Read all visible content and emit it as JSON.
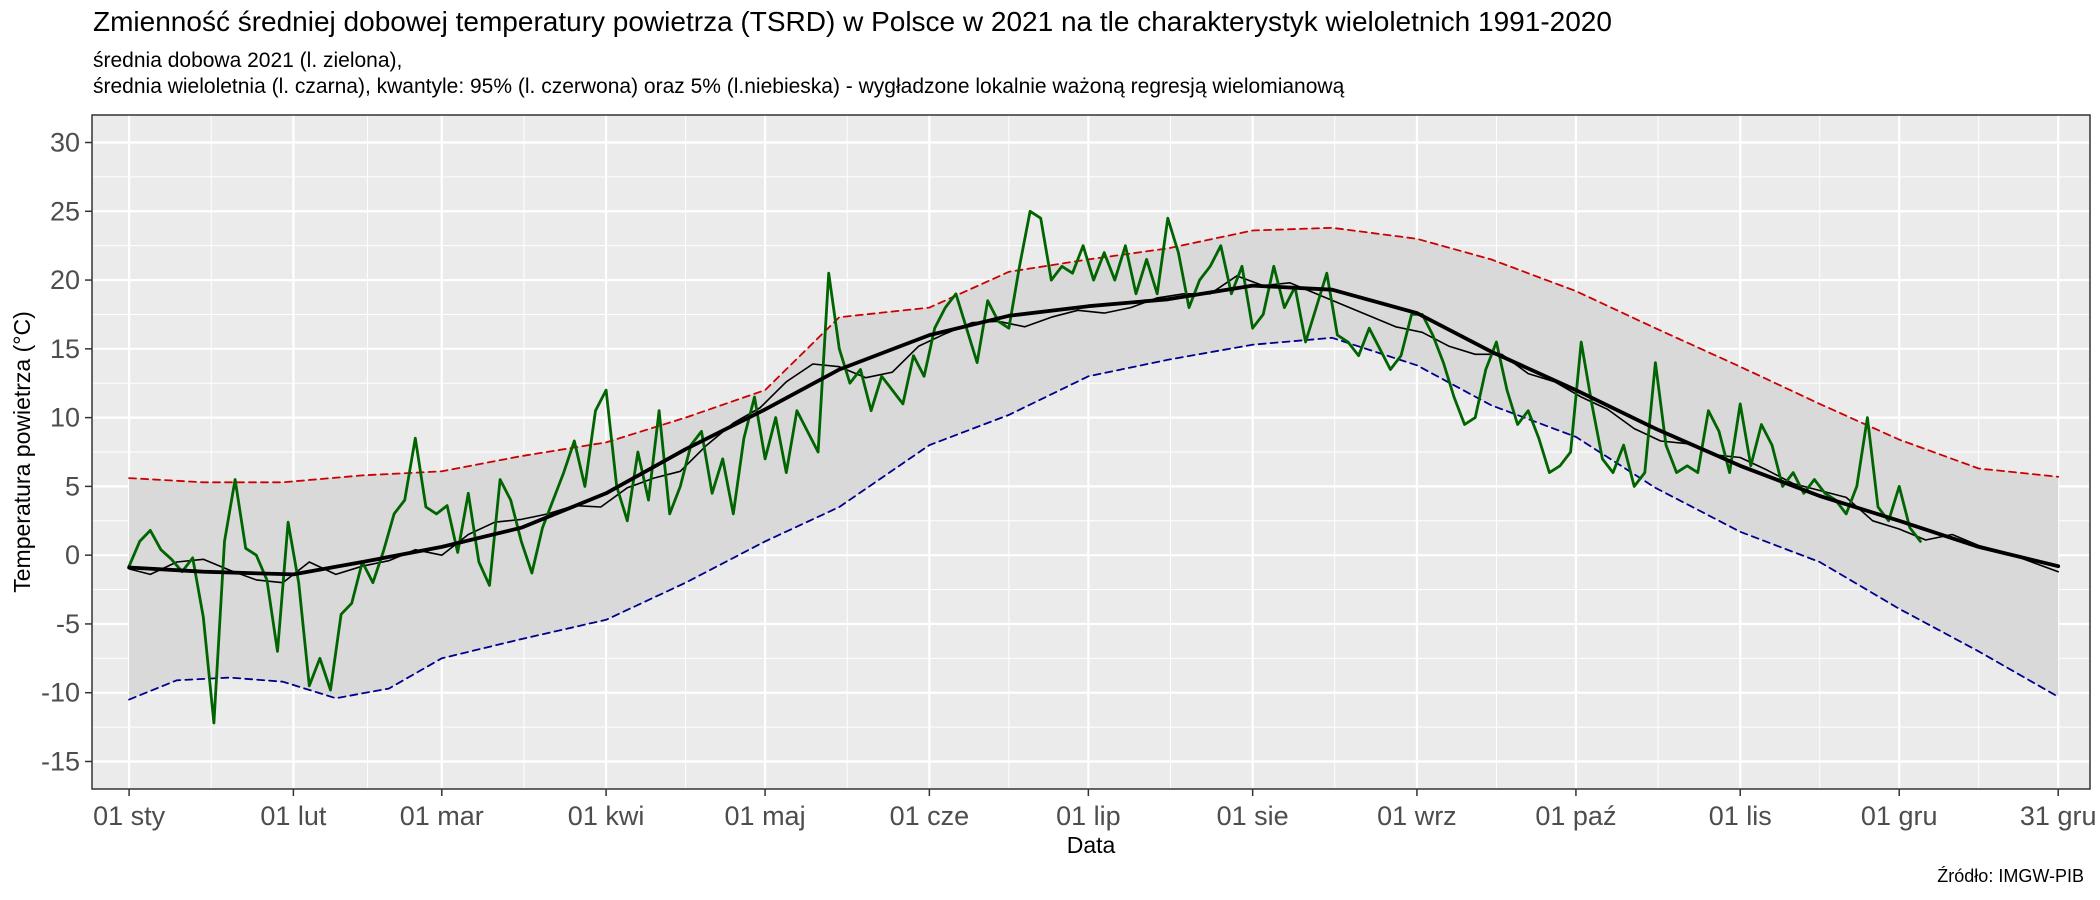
{
  "chart_data": {
    "type": "line",
    "title": "Zmienność średniej dobowej temperatury powietrza (TSRD) w Polsce w 2021 na tle charakterystyk wieloletnich 1991-2020",
    "subtitle_line1": "średnia dobowa 2021 (l. zielona),",
    "subtitle_line2": "średnia wieloletnia (l. czarna), kwantyle: 95% (l. czerwona) oraz 5% (l.niebieska) - wygładzone lokalnie ważoną regresją wielomianową",
    "xlabel": "Data",
    "ylabel": "Temperatura powietrza (°C)",
    "source": "Źródło: IMGW-PIB",
    "ylim": [
      -17,
      32
    ],
    "xlim": [
      -6,
      371
    ],
    "x_unit": "day of year 2021 (1 = 01 sty)",
    "yticks": [
      30,
      25,
      20,
      15,
      10,
      5,
      0,
      -5,
      -10,
      -15
    ],
    "ytick_labels": [
      "30",
      "25",
      "20",
      "15",
      "10",
      "5",
      "0",
      "-5",
      "-10",
      "-15"
    ],
    "xticks": [
      {
        "day": 1,
        "label": "01 sty"
      },
      {
        "day": 32,
        "label": "01 lut"
      },
      {
        "day": 60,
        "label": "01 mar"
      },
      {
        "day": 91,
        "label": "01 kwi"
      },
      {
        "day": 121,
        "label": "01 maj"
      },
      {
        "day": 152,
        "label": "01 cze"
      },
      {
        "day": 182,
        "label": "01 lip"
      },
      {
        "day": 213,
        "label": "01 sie"
      },
      {
        "day": 244,
        "label": "01 wrz"
      },
      {
        "day": 274,
        "label": "01 paź"
      },
      {
        "day": 305,
        "label": "01 lis"
      },
      {
        "day": 335,
        "label": "01 gru"
      },
      {
        "day": 365,
        "label": "31 gru"
      }
    ],
    "grid": true,
    "colors": {
      "panel": "#ebebeb",
      "grid": "#ffffff",
      "band": "#d9d9d9",
      "daily_2021": "#006400",
      "climatology": "#000000",
      "q95": "#cc0000",
      "q05": "#00008b"
    },
    "series": [
      {
        "key": "q95",
        "style": "dashed",
        "x": [
          1,
          15,
          30,
          45,
          60,
          75,
          91,
          106,
          121,
          135,
          152,
          167,
          182,
          197,
          213,
          228,
          244,
          258,
          274,
          289,
          305,
          320,
          335,
          350,
          365
        ],
        "y": [
          5.6,
          5.3,
          5.3,
          5.8,
          6.1,
          7.2,
          8.2,
          10.0,
          12.0,
          17.3,
          18.0,
          20.6,
          21.5,
          22.3,
          23.6,
          23.8,
          23.0,
          21.5,
          19.2,
          16.5,
          13.7,
          11.0,
          8.4,
          6.3,
          5.7
        ]
      },
      {
        "key": "q05",
        "style": "dashed",
        "x": [
          1,
          10,
          20,
          30,
          40,
          50,
          60,
          75,
          91,
          106,
          121,
          135,
          152,
          167,
          182,
          197,
          213,
          228,
          244,
          258,
          274,
          289,
          305,
          320,
          335,
          350,
          365
        ],
        "y": [
          -10.5,
          -9.1,
          -8.9,
          -9.2,
          -10.4,
          -9.7,
          -7.5,
          -6.1,
          -4.7,
          -2.0,
          1.0,
          3.5,
          8.0,
          10.2,
          13.0,
          14.2,
          15.3,
          15.8,
          13.8,
          10.9,
          8.6,
          4.9,
          1.7,
          -0.5,
          -3.9,
          -7.0,
          -10.3
        ]
      },
      {
        "key": "climatology",
        "style": "thick",
        "x": [
          1,
          15,
          32,
          45,
          60,
          75,
          91,
          106,
          121,
          135,
          152,
          167,
          182,
          197,
          213,
          228,
          244,
          258,
          274,
          289,
          305,
          320,
          335,
          350,
          365
        ],
        "y": [
          -0.9,
          -1.2,
          -1.4,
          -0.5,
          0.6,
          2.0,
          4.5,
          7.7,
          10.6,
          13.5,
          16.0,
          17.4,
          18.1,
          18.6,
          19.6,
          19.3,
          17.6,
          14.8,
          12.0,
          9.2,
          6.5,
          4.3,
          2.5,
          0.6,
          -0.8
        ]
      },
      {
        "key": "climatology_daily",
        "style": "thin",
        "x": [
          1,
          5,
          10,
          15,
          20,
          25,
          30,
          35,
          40,
          45,
          50,
          55,
          60,
          65,
          70,
          75,
          80,
          85,
          90,
          95,
          100,
          105,
          110,
          115,
          120,
          125,
          130,
          135,
          140,
          145,
          150,
          155,
          160,
          165,
          170,
          175,
          180,
          185,
          190,
          195,
          200,
          205,
          210,
          215,
          220,
          225,
          230,
          235,
          240,
          245,
          250,
          255,
          260,
          265,
          270,
          275,
          280,
          285,
          290,
          295,
          300,
          305,
          310,
          315,
          320,
          325,
          330,
          335,
          340,
          345,
          350,
          355,
          360,
          365
        ],
        "y": [
          -1.0,
          -1.4,
          -0.5,
          -0.3,
          -1.1,
          -1.8,
          -2.0,
          -0.5,
          -1.4,
          -0.8,
          -0.4,
          0.4,
          0.0,
          1.5,
          2.4,
          2.6,
          3.0,
          3.6,
          3.5,
          4.9,
          5.6,
          6.1,
          8.0,
          9.6,
          10.7,
          12.6,
          13.9,
          13.7,
          12.9,
          13.3,
          15.2,
          16.1,
          16.9,
          17.0,
          16.6,
          17.3,
          17.8,
          17.6,
          18.0,
          18.7,
          19.0,
          19.0,
          20.3,
          19.6,
          19.8,
          19.0,
          18.2,
          17.4,
          16.6,
          16.2,
          15.2,
          14.6,
          14.6,
          13.2,
          12.6,
          11.5,
          10.6,
          9.2,
          8.3,
          8.1,
          7.3,
          7.1,
          6.2,
          5.2,
          4.7,
          4.2,
          2.5,
          1.9,
          1.1,
          1.5,
          0.7,
          0.2,
          -0.5,
          -1.2
        ]
      },
      {
        "key": "daily_2021",
        "style": "solid",
        "x": [
          1,
          3,
          5,
          7,
          9,
          11,
          13,
          15,
          17,
          19,
          21,
          23,
          25,
          27,
          29,
          31,
          33,
          35,
          37,
          39,
          41,
          43,
          45,
          47,
          49,
          51,
          53,
          55,
          57,
          59,
          61,
          63,
          65,
          67,
          69,
          71,
          73,
          75,
          77,
          79,
          81,
          83,
          85,
          87,
          89,
          91,
          93,
          95,
          97,
          99,
          101,
          103,
          105,
          107,
          109,
          111,
          113,
          115,
          117,
          119,
          121,
          123,
          125,
          127,
          129,
          131,
          133,
          135,
          137,
          139,
          141,
          143,
          145,
          147,
          149,
          151,
          153,
          155,
          157,
          159,
          161,
          163,
          165,
          167,
          169,
          171,
          173,
          175,
          177,
          179,
          181,
          183,
          185,
          187,
          189,
          191,
          193,
          195,
          197,
          199,
          201,
          203,
          205,
          207,
          209,
          211,
          213,
          215,
          217,
          219,
          221,
          223,
          225,
          227,
          229,
          231,
          233,
          235,
          237,
          239,
          241,
          243,
          245,
          247,
          249,
          251,
          253,
          255,
          257,
          259,
          261,
          263,
          265,
          267,
          269,
          271,
          273,
          275,
          277,
          279,
          281,
          283,
          285,
          287,
          289,
          291,
          293,
          295,
          297,
          299,
          301,
          303,
          305,
          307,
          309,
          311,
          313,
          315,
          317,
          319,
          321,
          323,
          325,
          327,
          329,
          331,
          333,
          335,
          337,
          339
        ],
        "y": [
          -0.8,
          1.0,
          1.8,
          0.4,
          -0.3,
          -1.2,
          -0.2,
          -4.5,
          -12.2,
          1.0,
          5.5,
          0.5,
          0.0,
          -1.8,
          -7.0,
          2.4,
          -2.0,
          -9.5,
          -7.5,
          -9.8,
          -4.3,
          -3.5,
          -0.5,
          -2.0,
          0.3,
          3.0,
          4.0,
          8.5,
          3.5,
          3.0,
          3.6,
          0.2,
          4.5,
          -0.5,
          -2.2,
          5.5,
          4.0,
          1.0,
          -1.3,
          2.0,
          4.0,
          6.0,
          8.3,
          5.0,
          10.5,
          12.0,
          5.0,
          2.5,
          7.5,
          4.0,
          10.5,
          3.0,
          5.0,
          8.0,
          9.0,
          4.5,
          7.0,
          3.0,
          8.5,
          11.5,
          7.0,
          10.0,
          6.0,
          10.5,
          9.0,
          7.5,
          20.5,
          15.0,
          12.5,
          13.5,
          10.5,
          13.0,
          12.0,
          11.0,
          14.5,
          13.0,
          16.5,
          18.0,
          19.0,
          16.5,
          14.0,
          18.5,
          17.0,
          16.5,
          21.0,
          25.0,
          24.5,
          20.0,
          21.0,
          20.5,
          22.5,
          20.0,
          22.0,
          20.0,
          22.5,
          19.0,
          21.5,
          19.0,
          24.5,
          22.0,
          18.0,
          20.0,
          21.0,
          22.5,
          19.0,
          21.0,
          16.5,
          17.5,
          21.0,
          18.0,
          19.5,
          15.5,
          18.0,
          20.5,
          16.0,
          15.5,
          14.5,
          16.5,
          15.0,
          13.5,
          14.5,
          17.5,
          17.5,
          16.0,
          14.0,
          11.5,
          9.5,
          10.0,
          13.5,
          15.5,
          12.0,
          9.5,
          10.5,
          8.5,
          6.0,
          6.5,
          7.5,
          15.5,
          11.0,
          7.0,
          6.0,
          8.0,
          5.0,
          6.0,
          14.0,
          8.0,
          6.0,
          6.5,
          6.0,
          10.5,
          9.0,
          6.0,
          11.0,
          6.5,
          9.5,
          8.0,
          5.0,
          6.0,
          4.5,
          5.5,
          4.5,
          4.0,
          3.0,
          5.0,
          10.0,
          3.5,
          2.5,
          5.0,
          2.0,
          1.0
        ]
      }
    ]
  }
}
